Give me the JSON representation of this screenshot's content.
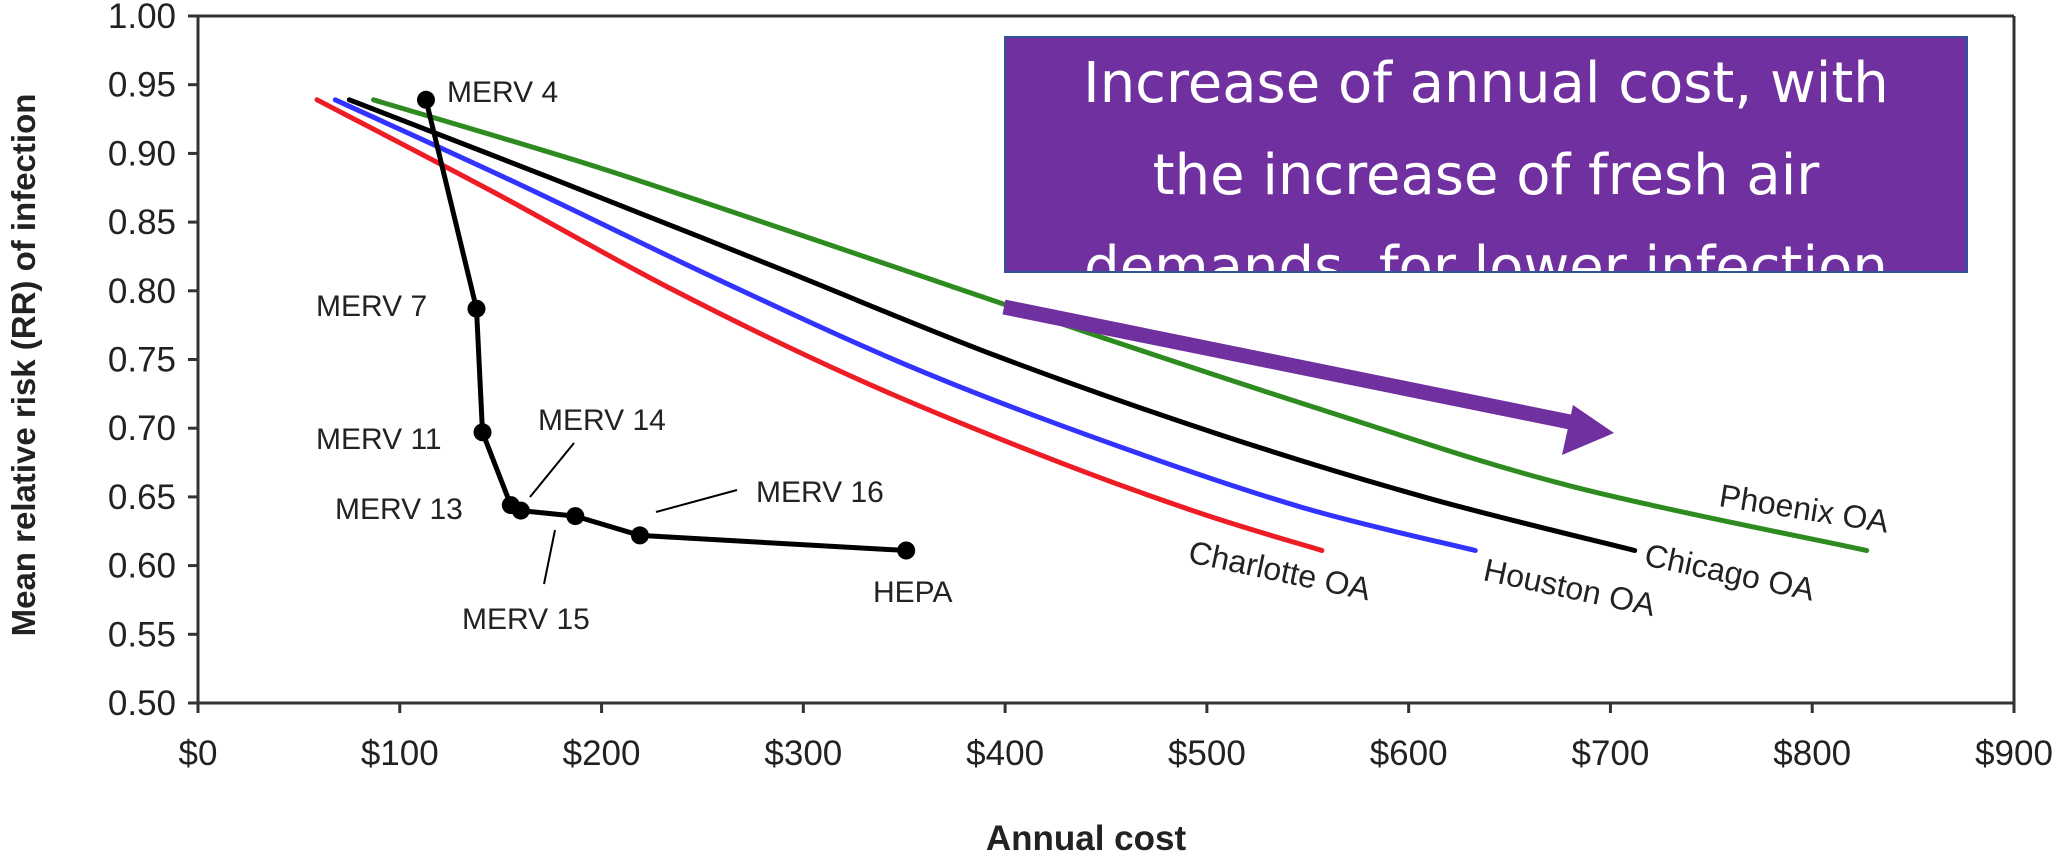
{
  "chart_data": {
    "type": "line",
    "xlabel": "Annual cost",
    "ylabel": "Mean relative risk (RR) of infection",
    "xlim": [
      0,
      900
    ],
    "ylim": [
      0.5,
      1.0
    ],
    "x_ticks": [
      "$0",
      "$100",
      "$200",
      "$300",
      "$400",
      "$500",
      "$600",
      "$700",
      "$800",
      "$900"
    ],
    "y_ticks": [
      "0.50",
      "0.55",
      "0.60",
      "0.65",
      "0.70",
      "0.75",
      "0.80",
      "0.85",
      "0.90",
      "0.95",
      "1.00"
    ],
    "grid": false,
    "series": [
      {
        "name": "Phoenix OA",
        "color": "#2e8b20",
        "x": [
          87,
          200,
          320,
          440,
          560,
          680,
          827
        ],
        "y": [
          0.939,
          0.889,
          0.83,
          0.77,
          0.712,
          0.658,
          0.611
        ]
      },
      {
        "name": "Chicago OA",
        "color": "#000000",
        "x": [
          75,
          175,
          285,
          395,
          505,
          610,
          712
        ],
        "y": [
          0.939,
          0.882,
          0.818,
          0.753,
          0.696,
          0.649,
          0.611
        ]
      },
      {
        "name": "Houston OA",
        "color": "#3333ff",
        "x": [
          68,
          160,
          258,
          356,
          454,
          548,
          633
        ],
        "y": [
          0.939,
          0.877,
          0.808,
          0.743,
          0.688,
          0.642,
          0.611
        ]
      },
      {
        "name": "Charlotte OA",
        "color": "#ee1c25",
        "x": [
          59,
          145,
          235,
          325,
          415,
          495,
          557
        ],
        "y": [
          0.939,
          0.873,
          0.801,
          0.737,
          0.682,
          0.639,
          0.611
        ]
      },
      {
        "name": "",
        "color": "#000000",
        "markers": true,
        "x": [
          113,
          138,
          141,
          155,
          160,
          187,
          219,
          351
        ],
        "y": [
          0.939,
          0.787,
          0.697,
          0.644,
          0.64,
          0.636,
          0.622,
          0.611
        ]
      }
    ],
    "point_labels": [
      "MERV 4",
      "MERV 7",
      "MERV 11",
      "MERV 13",
      "MERV 14",
      "MERV 15",
      "MERV 16",
      "HEPA"
    ],
    "curve_labels": [
      "Phoenix OA",
      "Chicago OA",
      "Houston OA",
      "Charlotte OA"
    ],
    "callout": {
      "lines": [
        "Increase of annual cost, with",
        "the increase of fresh air",
        "demands, for lower infection"
      ],
      "background": "#7030a0"
    }
  }
}
